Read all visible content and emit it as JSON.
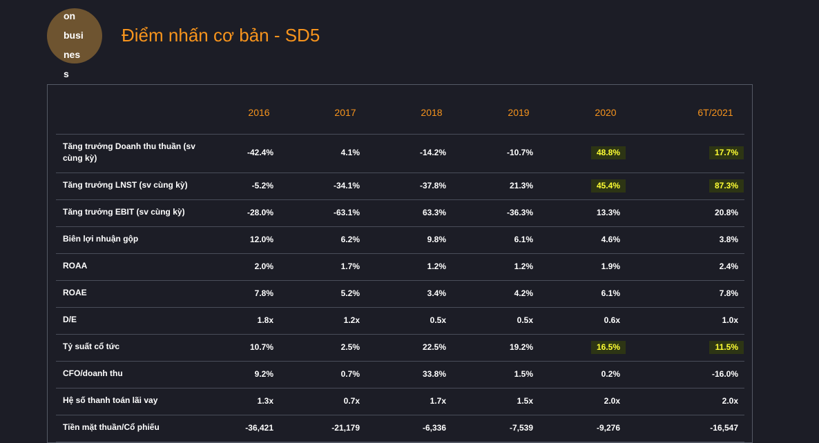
{
  "header": {
    "icon_text": [
      "on",
      "busi",
      "nes",
      "s"
    ],
    "title": "Điểm nhấn cơ bản - SD5"
  },
  "table": {
    "columns": [
      "2016",
      "2017",
      "2018",
      "2019",
      "2020",
      "6T/2021"
    ],
    "rows": [
      {
        "label": "Tăng trưởng Doanh thu thuần (sv cùng kỳ)",
        "values": [
          "-42.4%",
          "4.1%",
          "-14.2%",
          "-10.7%",
          "48.8%",
          "17.7%"
        ]
      },
      {
        "label": "Tăng trưởng LNST (sv cùng kỳ)",
        "values": [
          "-5.2%",
          "-34.1%",
          "-37.8%",
          "21.3%",
          "45.4%",
          "87.3%"
        ]
      },
      {
        "label": "Tăng trưởng EBIT (sv cùng kỳ)",
        "values": [
          "-28.0%",
          "-63.1%",
          "63.3%",
          "-36.3%",
          "13.3%",
          "20.8%"
        ]
      },
      {
        "label": "Biên lợi nhuận gộp",
        "values": [
          "12.0%",
          "6.2%",
          "9.8%",
          "6.1%",
          "4.6%",
          "3.8%"
        ]
      },
      {
        "label": "ROAA",
        "values": [
          "2.0%",
          "1.7%",
          "1.2%",
          "1.2%",
          "1.9%",
          "2.4%"
        ]
      },
      {
        "label": "ROAE",
        "values": [
          "7.8%",
          "5.2%",
          "3.4%",
          "4.2%",
          "6.1%",
          "7.8%"
        ]
      },
      {
        "label": "D/E",
        "values": [
          "1.8x",
          "1.2x",
          "0.5x",
          "0.5x",
          "0.6x",
          "1.0x"
        ]
      },
      {
        "label": "Tỷ suất cổ tức",
        "values": [
          "10.7%",
          "2.5%",
          "22.5%",
          "19.2%",
          "16.5%",
          "11.5%"
        ]
      },
      {
        "label": "CFO/doanh thu",
        "values": [
          "9.2%",
          "0.7%",
          "33.8%",
          "1.5%",
          "0.2%",
          "-16.0%"
        ]
      },
      {
        "label": "Hệ số thanh toán lãi vay",
        "values": [
          "1.3x",
          "0.7x",
          "1.7x",
          "1.5x",
          "2.0x",
          "2.0x"
        ]
      },
      {
        "label": "Tiền mặt thuần/Cổ phiếu",
        "values": [
          "-36,421",
          "-21,179",
          "-6,336",
          "-7,539",
          "-9,276",
          "-16,547"
        ]
      }
    ],
    "highlighted": [
      [
        0,
        4
      ],
      [
        0,
        5
      ],
      [
        1,
        4
      ],
      [
        1,
        5
      ],
      [
        7,
        4
      ],
      [
        7,
        5
      ]
    ]
  }
}
